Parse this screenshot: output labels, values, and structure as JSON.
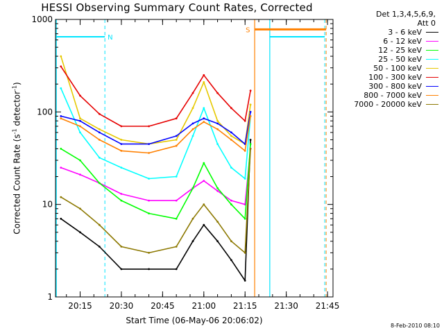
{
  "title": "HESSI Observing Summary Count Rates, Corrected",
  "stamp": "8-Feb-2010 08:10",
  "legend": {
    "header_line1": "Det 1,3,4,5,6,9,",
    "header_line2": "Att 0",
    "entries": [
      {
        "label": "3 - 6 keV",
        "color": "#000000"
      },
      {
        "label": "6 - 12 keV",
        "color": "#ff00ff"
      },
      {
        "label": "12 - 25 keV",
        "color": "#00ff00"
      },
      {
        "label": "25 - 50 keV",
        "color": "#00ffff"
      },
      {
        "label": "50 - 100 keV",
        "color": "#e6c800"
      },
      {
        "label": "100 - 300 keV",
        "color": "#e60000"
      },
      {
        "label": "300 - 800 keV",
        "color": "#0000ff"
      },
      {
        "label": "800 - 7000 keV",
        "color": "#ff8000"
      },
      {
        "label": "7000 - 20000 keV",
        "color": "#8c7800"
      }
    ]
  },
  "markers": {
    "n_label": "N",
    "s_label": "S",
    "n_color": "#00e5ff",
    "s_color": "#ff8000"
  },
  "chart_data": {
    "type": "line",
    "title": "HESSI Observing Summary Count Rates, Corrected",
    "xlabel": "Start Time (06-May-06 20:06:02)",
    "ylabel_main": "Corrected Count Rate (s",
    "ylabel_sup1": "-1",
    "ylabel_mid": " detector",
    "ylabel_sup2": "-1",
    "ylabel_end": ")",
    "y_scale": "log",
    "ylim": [
      1,
      1000
    ],
    "xlim": [
      "20:06:02",
      "21:47:00"
    ],
    "x_ticks": [
      "20:15",
      "20:30",
      "20:45",
      "21:00",
      "21:15",
      "21:30",
      "21:45"
    ],
    "y_ticks": [
      "1",
      "10",
      "100",
      "1000"
    ],
    "legend_position": "right",
    "series": [
      {
        "name": "3 - 6 keV",
        "x": [
          "20:08",
          "20:15",
          "20:22",
          "20:30",
          "20:40",
          "20:50",
          "20:56",
          "21:00",
          "21:05",
          "21:10",
          "21:15",
          "21:17"
        ],
        "values": [
          7,
          5,
          3.5,
          2,
          2,
          2,
          4,
          6,
          4,
          2.5,
          1.5,
          50
        ]
      },
      {
        "name": "6 - 12 keV",
        "x": [
          "20:08",
          "20:15",
          "20:22",
          "20:30",
          "20:40",
          "20:50",
          "20:56",
          "21:00",
          "21:05",
          "21:10",
          "21:15",
          "21:17"
        ],
        "values": [
          25,
          21,
          17,
          13,
          11,
          11,
          15,
          18,
          14,
          11,
          10,
          40
        ]
      },
      {
        "name": "12 - 25 keV",
        "x": [
          "20:08",
          "20:15",
          "20:22",
          "20:30",
          "20:40",
          "20:50",
          "20:56",
          "21:00",
          "21:05",
          "21:10",
          "21:15",
          "21:17"
        ],
        "values": [
          40,
          30,
          17,
          11,
          8,
          7,
          15,
          28,
          15,
          10,
          7,
          45
        ]
      },
      {
        "name": "25 - 50 keV",
        "x": [
          "20:08",
          "20:15",
          "20:22",
          "20:30",
          "20:40",
          "20:50",
          "20:56",
          "21:00",
          "21:05",
          "21:10",
          "21:15",
          "21:17"
        ],
        "values": [
          180,
          60,
          32,
          25,
          19,
          20,
          55,
          110,
          45,
          25,
          19,
          90
        ]
      },
      {
        "name": "50 - 100 keV",
        "x": [
          "20:08",
          "20:15",
          "20:22",
          "20:30",
          "20:40",
          "20:50",
          "20:56",
          "21:00",
          "21:05",
          "21:10",
          "21:15",
          "21:17"
        ],
        "values": [
          400,
          85,
          65,
          50,
          45,
          50,
          110,
          210,
          80,
          55,
          45,
          120
        ]
      },
      {
        "name": "100 - 300 keV",
        "x": [
          "20:08",
          "20:15",
          "20:22",
          "20:30",
          "20:40",
          "20:50",
          "20:56",
          "21:00",
          "21:05",
          "21:10",
          "21:15",
          "21:17"
        ],
        "values": [
          310,
          150,
          95,
          70,
          70,
          85,
          160,
          250,
          160,
          110,
          80,
          170
        ]
      },
      {
        "name": "300 - 800 keV",
        "x": [
          "20:08",
          "20:15",
          "20:22",
          "20:30",
          "20:40",
          "20:50",
          "20:56",
          "21:00",
          "21:05",
          "21:10",
          "21:15",
          "21:17"
        ],
        "values": [
          90,
          80,
          60,
          45,
          45,
          55,
          75,
          85,
          75,
          60,
          45,
          100
        ]
      },
      {
        "name": "800 - 7000 keV",
        "x": [
          "20:08",
          "20:15",
          "20:22",
          "20:30",
          "20:40",
          "20:50",
          "20:56",
          "21:00",
          "21:05",
          "21:10",
          "21:15",
          "21:17"
        ],
        "values": [
          85,
          70,
          50,
          38,
          36,
          43,
          65,
          78,
          65,
          50,
          38,
          90
        ]
      },
      {
        "name": "7000 - 20000 keV",
        "x": [
          "20:08",
          "20:15",
          "20:22",
          "20:30",
          "20:40",
          "20:50",
          "20:56",
          "21:00",
          "21:05",
          "21:10",
          "21:15",
          "21:17"
        ],
        "values": [
          12,
          9,
          6,
          3.5,
          3,
          3.5,
          7,
          10,
          6.5,
          4,
          3,
          40
        ]
      }
    ]
  }
}
